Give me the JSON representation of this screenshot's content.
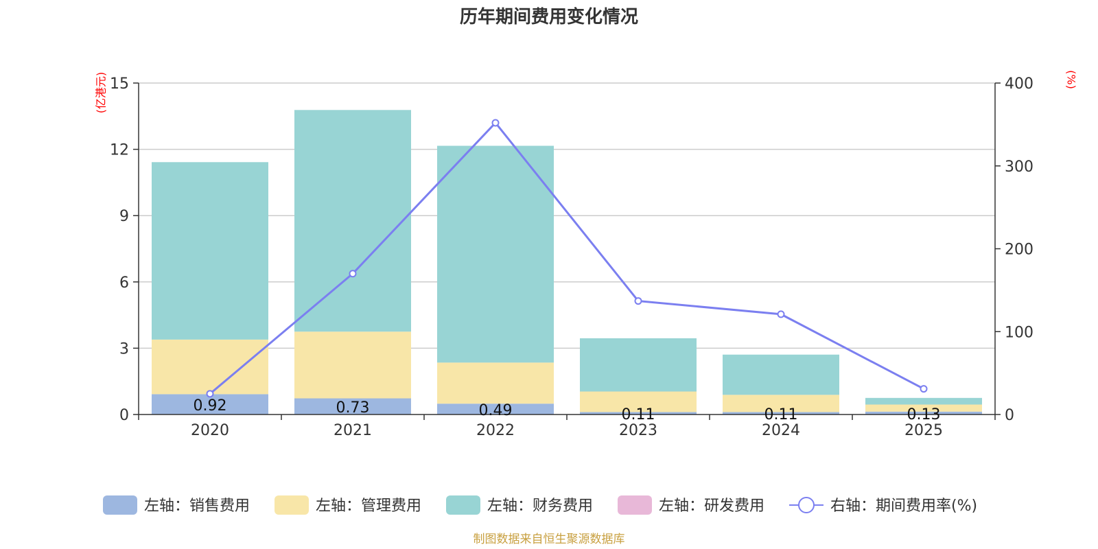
{
  "chart_data": {
    "type": "bar+line",
    "title": "历年期间费用变化情况",
    "categories": [
      "2020",
      "2021",
      "2022",
      "2023",
      "2024",
      "2025"
    ],
    "left_axis": {
      "unit": "(亿港元)",
      "ylim": [
        0,
        15
      ],
      "ticks": [
        "0",
        "3",
        "6",
        "9",
        "12",
        "15"
      ]
    },
    "right_axis": {
      "unit": "(%)",
      "ylim": [
        0,
        400
      ],
      "ticks": [
        "0",
        "100",
        "200",
        "300",
        "400"
      ]
    },
    "series": [
      {
        "name": "左轴：销售费用",
        "type": "bar",
        "axis": "left",
        "color": "#9db7e0",
        "values": [
          0.92,
          0.73,
          0.49,
          0.11,
          0.11,
          0.13
        ],
        "labels": [
          "0.92",
          "0.73",
          "0.49",
          "0.11",
          "0.11",
          "0.13"
        ]
      },
      {
        "name": "左轴：管理费用",
        "type": "bar",
        "axis": "left",
        "color": "#f8e6a8",
        "values": [
          2.47,
          3.02,
          1.86,
          0.93,
          0.78,
          0.32
        ]
      },
      {
        "name": "左轴：财务费用",
        "type": "bar",
        "axis": "left",
        "color": "#98d4d4",
        "values": [
          8.03,
          10.03,
          9.81,
          2.41,
          1.82,
          0.3
        ]
      },
      {
        "name": "左轴：研发费用",
        "type": "bar",
        "axis": "left",
        "color": "#e8b8d8",
        "values": [
          0,
          0,
          0,
          0,
          0,
          0
        ]
      },
      {
        "name": "右轴：期间费用率(%)",
        "type": "line",
        "axis": "right",
        "color": "#7b7ff0",
        "values": [
          25,
          170,
          352,
          137,
          121,
          31
        ]
      }
    ]
  },
  "footer": {
    "source": "制图数据来自恒生聚源数据库"
  }
}
